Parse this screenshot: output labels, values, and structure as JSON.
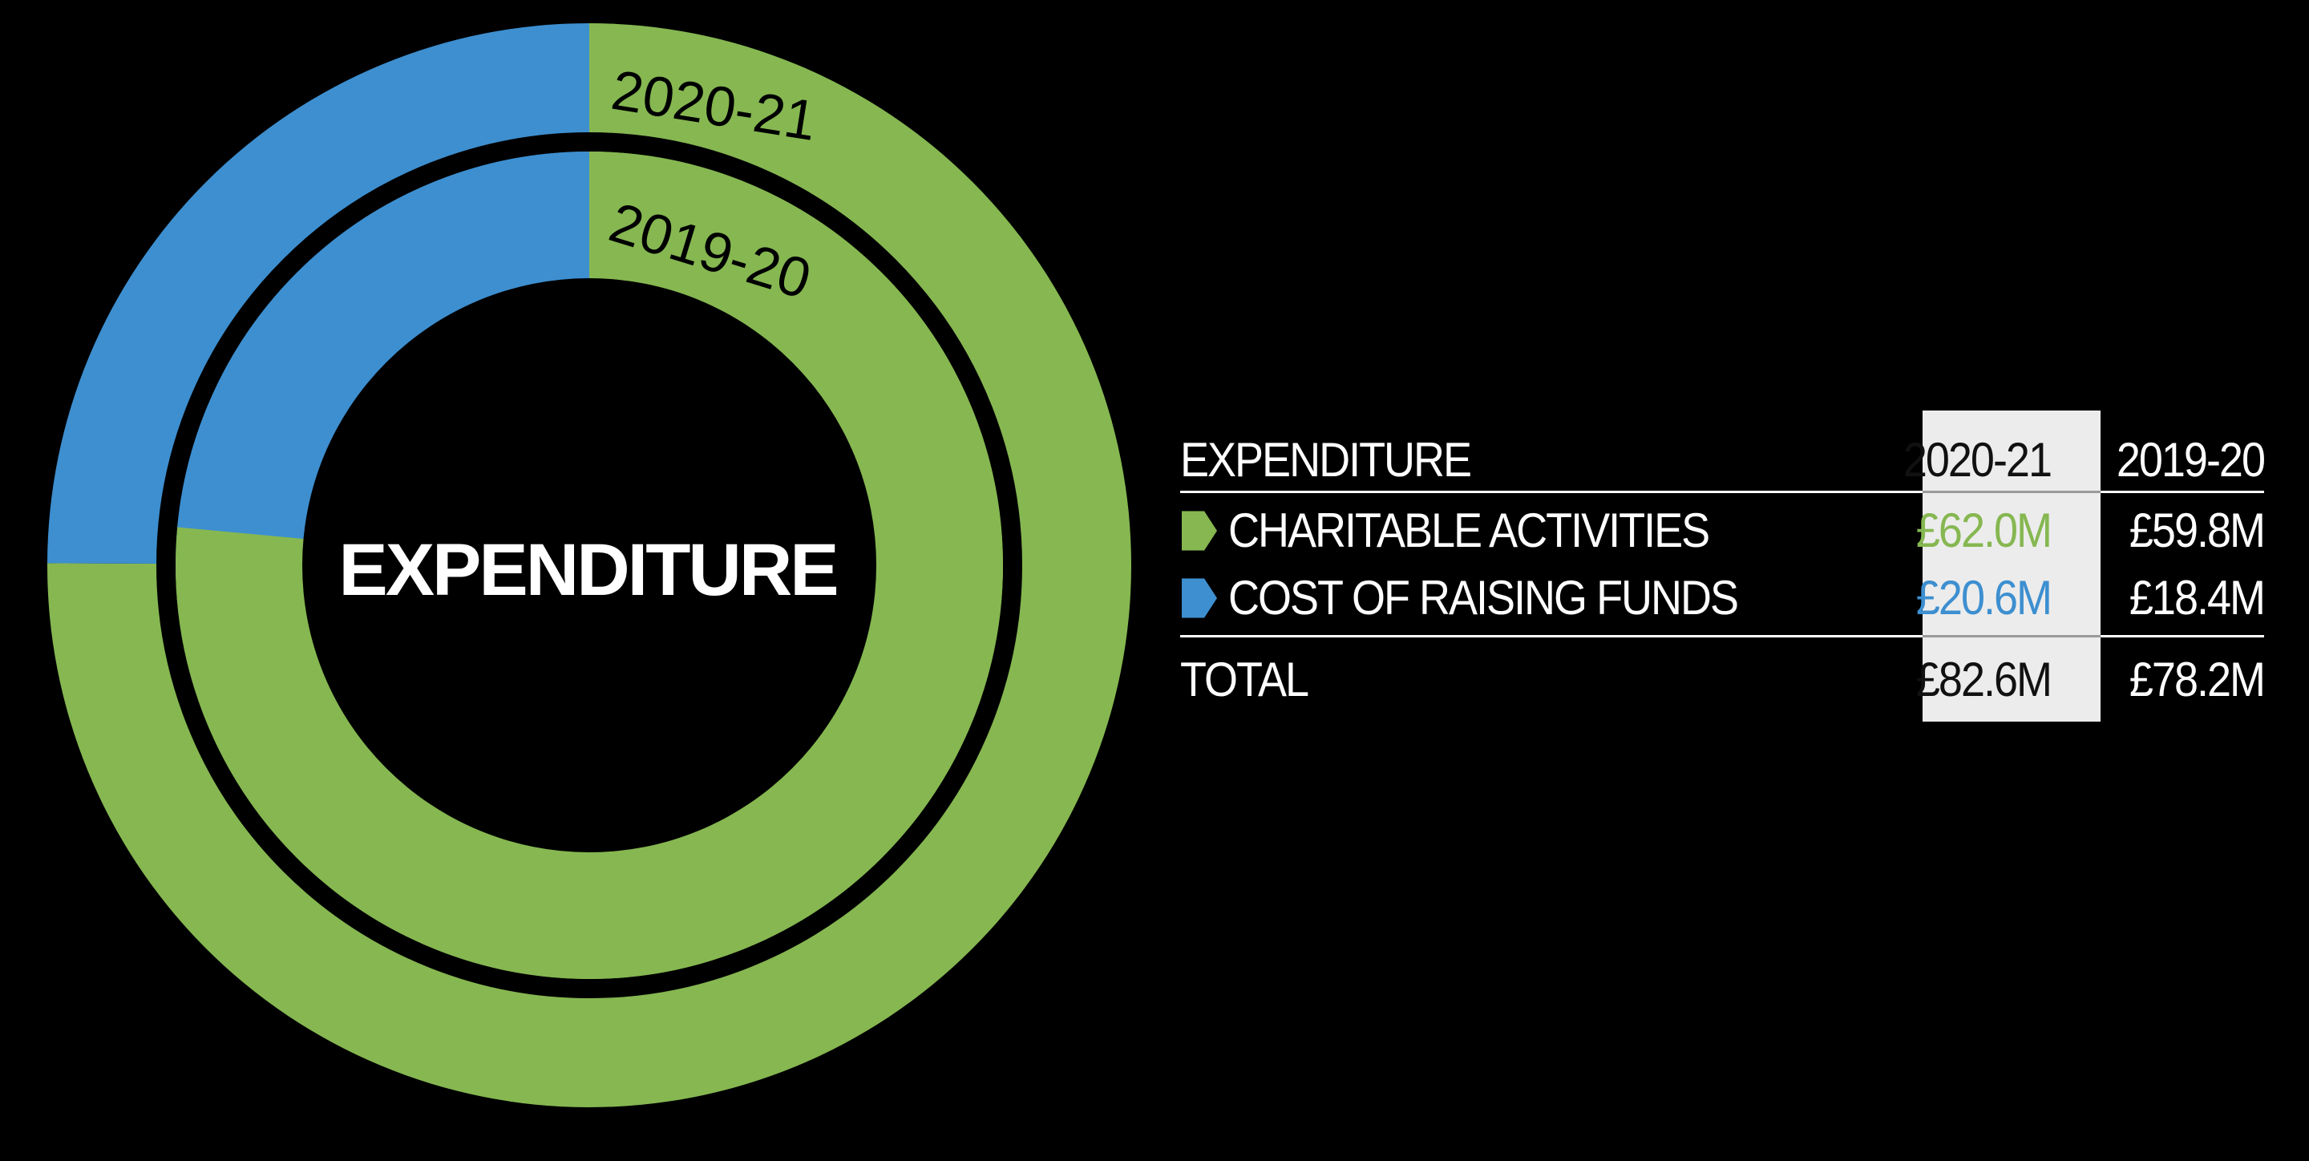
{
  "colors": {
    "charitable": "#86b751",
    "raising": "#3d8fd0",
    "background": "#000000",
    "highlight_column": "#ececec"
  },
  "chart_data": {
    "type": "pie",
    "title": "EXPENDITURE",
    "rings": [
      {
        "name": "2020-21",
        "position": "outer",
        "slices": [
          {
            "label": "CHARITABLE ACTIVITIES",
            "value": 62.0
          },
          {
            "label": "COST OF RAISING FUNDS",
            "value": 20.6
          }
        ]
      },
      {
        "name": "2019-20",
        "position": "inner",
        "slices": [
          {
            "label": "CHARITABLE ACTIVITIES",
            "value": 59.8
          },
          {
            "label": "COST OF RAISING FUNDS",
            "value": 18.4
          }
        ]
      }
    ],
    "unit": "£M"
  },
  "table": {
    "header": {
      "label": "EXPENDITURE",
      "col1": "2020-21",
      "col2": "2019-20"
    },
    "rows": [
      {
        "label": "CHARITABLE ACTIVITIES",
        "col1": "£62.0M",
        "col2": "£59.8M",
        "color_key": "charitable"
      },
      {
        "label": "COST OF RAISING FUNDS",
        "col1": "£20.6M",
        "col2": "£18.4M",
        "color_key": "raising"
      }
    ],
    "total": {
      "label": "TOTAL",
      "col1": "£82.6M",
      "col2": "£78.2M"
    }
  }
}
